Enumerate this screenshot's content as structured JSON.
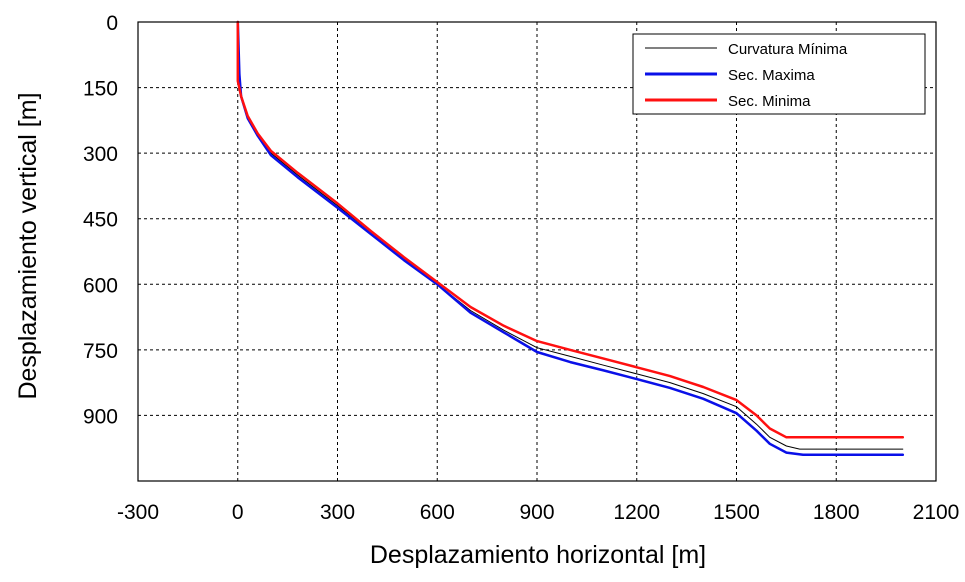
{
  "chart_data": {
    "type": "line",
    "xlabel": "Desplazamiento horizontal  [m]",
    "ylabel": "Desplazamiento vertical [m]",
    "xlim": [
      -300,
      2100
    ],
    "ylim": [
      0,
      1050
    ],
    "y_inverted": true,
    "grid": true,
    "legend_position": "top-right",
    "x_ticks": [
      -300,
      0,
      300,
      600,
      900,
      1200,
      1500,
      1800,
      2100
    ],
    "x_tick_labels": [
      "-300",
      "0",
      "300",
      "600",
      "900",
      "1200",
      "1500",
      "1800",
      "2100"
    ],
    "y_ticks": [
      0,
      150,
      300,
      450,
      600,
      750,
      900
    ],
    "y_tick_labels": [
      "0",
      "150",
      "300",
      "450",
      "600",
      "750",
      "900"
    ],
    "series": [
      {
        "name": "Curvatura Mínima",
        "color": "#000000",
        "points": [
          [
            0,
            0
          ],
          [
            0,
            130
          ],
          [
            10,
            170
          ],
          [
            30,
            220
          ],
          [
            60,
            260
          ],
          [
            100,
            300
          ],
          [
            180,
            350
          ],
          [
            300,
            420
          ],
          [
            400,
            480
          ],
          [
            500,
            540
          ],
          [
            600,
            600
          ],
          [
            700,
            660
          ],
          [
            800,
            705
          ],
          [
            900,
            745
          ],
          [
            1000,
            765
          ],
          [
            1100,
            785
          ],
          [
            1200,
            805
          ],
          [
            1300,
            825
          ],
          [
            1400,
            850
          ],
          [
            1500,
            880
          ],
          [
            1560,
            920
          ],
          [
            1600,
            950
          ],
          [
            1650,
            970
          ],
          [
            1690,
            977
          ],
          [
            1750,
            977
          ],
          [
            2000,
            977
          ]
        ]
      },
      {
        "name": "Sec. Maxima",
        "color": "#0a10e8",
        "points": [
          [
            0,
            0
          ],
          [
            5,
            120
          ],
          [
            10,
            170
          ],
          [
            30,
            220
          ],
          [
            60,
            260
          ],
          [
            100,
            305
          ],
          [
            180,
            355
          ],
          [
            300,
            425
          ],
          [
            400,
            485
          ],
          [
            500,
            545
          ],
          [
            600,
            600
          ],
          [
            700,
            665
          ],
          [
            800,
            710
          ],
          [
            900,
            755
          ],
          [
            1000,
            778
          ],
          [
            1100,
            797
          ],
          [
            1200,
            817
          ],
          [
            1300,
            837
          ],
          [
            1400,
            862
          ],
          [
            1500,
            895
          ],
          [
            1560,
            935
          ],
          [
            1600,
            965
          ],
          [
            1650,
            985
          ],
          [
            1700,
            990
          ],
          [
            1800,
            990
          ],
          [
            2000,
            990
          ]
        ]
      },
      {
        "name": "Sec. Minima",
        "color": "#ff1010",
        "points": [
          [
            0,
            0
          ],
          [
            0,
            135
          ],
          [
            10,
            170
          ],
          [
            30,
            215
          ],
          [
            60,
            255
          ],
          [
            100,
            295
          ],
          [
            180,
            345
          ],
          [
            300,
            415
          ],
          [
            400,
            478
          ],
          [
            500,
            538
          ],
          [
            600,
            595
          ],
          [
            700,
            652
          ],
          [
            800,
            695
          ],
          [
            900,
            730
          ],
          [
            1000,
            750
          ],
          [
            1100,
            770
          ],
          [
            1200,
            790
          ],
          [
            1300,
            810
          ],
          [
            1400,
            835
          ],
          [
            1500,
            865
          ],
          [
            1560,
            900
          ],
          [
            1600,
            930
          ],
          [
            1650,
            950
          ],
          [
            1700,
            950
          ],
          [
            1800,
            950
          ],
          [
            2000,
            950
          ]
        ]
      }
    ]
  }
}
